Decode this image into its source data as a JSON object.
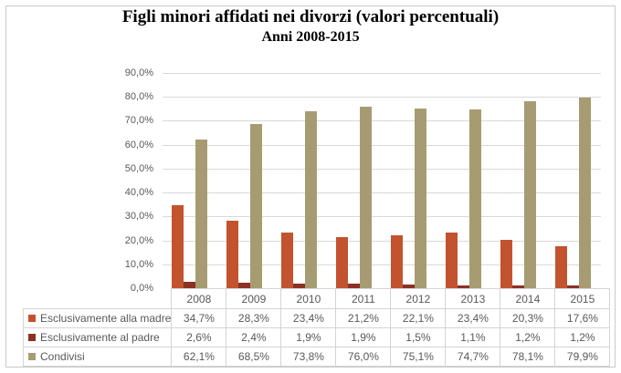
{
  "page": {
    "title": "Figli minori affidati nei divorzi (valori percentuali)",
    "subtitle": "Anni 2008-2015"
  },
  "colors": {
    "series_madre": "#c2532e",
    "series_padre": "#8b3123",
    "series_condivisi": "#a79b72",
    "gridline": "#d9d9d9",
    "axis_text": "#595959",
    "table_border": "#d4d4d4",
    "frame_border": "#c9c9c9"
  },
  "chart_data": {
    "type": "bar",
    "title": "Figli minori affidati nei divorzi (valori percentuali)",
    "subtitle": "Anni 2008-2015",
    "categories": [
      "2008",
      "2009",
      "2010",
      "2011",
      "2012",
      "2013",
      "2014",
      "2015"
    ],
    "series": [
      {
        "name": "Esclusivamente alla madre",
        "color": "#c2532e",
        "values": [
          34.7,
          28.3,
          23.4,
          21.2,
          22.1,
          23.4,
          20.3,
          17.6
        ],
        "labels": [
          "34,7%",
          "28,3%",
          "23,4%",
          "21,2%",
          "22,1%",
          "23,4%",
          "20,3%",
          "17,6%"
        ]
      },
      {
        "name": "Esclusivamente al padre",
        "color": "#8b3123",
        "values": [
          2.6,
          2.4,
          1.9,
          1.9,
          1.5,
          1.1,
          1.2,
          1.2
        ],
        "labels": [
          "2,6%",
          "2,4%",
          "1,9%",
          "1,9%",
          "1,5%",
          "1,1%",
          "1,2%",
          "1,2%"
        ]
      },
      {
        "name": "Condivisi",
        "color": "#a79b72",
        "values": [
          62.1,
          68.5,
          73.8,
          76.0,
          75.1,
          74.7,
          78.1,
          79.9
        ],
        "labels": [
          "62,1%",
          "68,5%",
          "73,8%",
          "76,0%",
          "75,1%",
          "74,7%",
          "78,1%",
          "79,9%"
        ]
      }
    ],
    "ylim": [
      0,
      90
    ],
    "ytick_step": 10,
    "ytick_labels_top_to_bottom": [
      "90,0%",
      "80,0%",
      "70,0%",
      "60,0%",
      "50,0%",
      "40,0%",
      "30,0%",
      "20,0%",
      "10,0%",
      "0,0%"
    ],
    "grid": true,
    "legend_position": "data-table-left-column",
    "data_table_shown": true
  }
}
